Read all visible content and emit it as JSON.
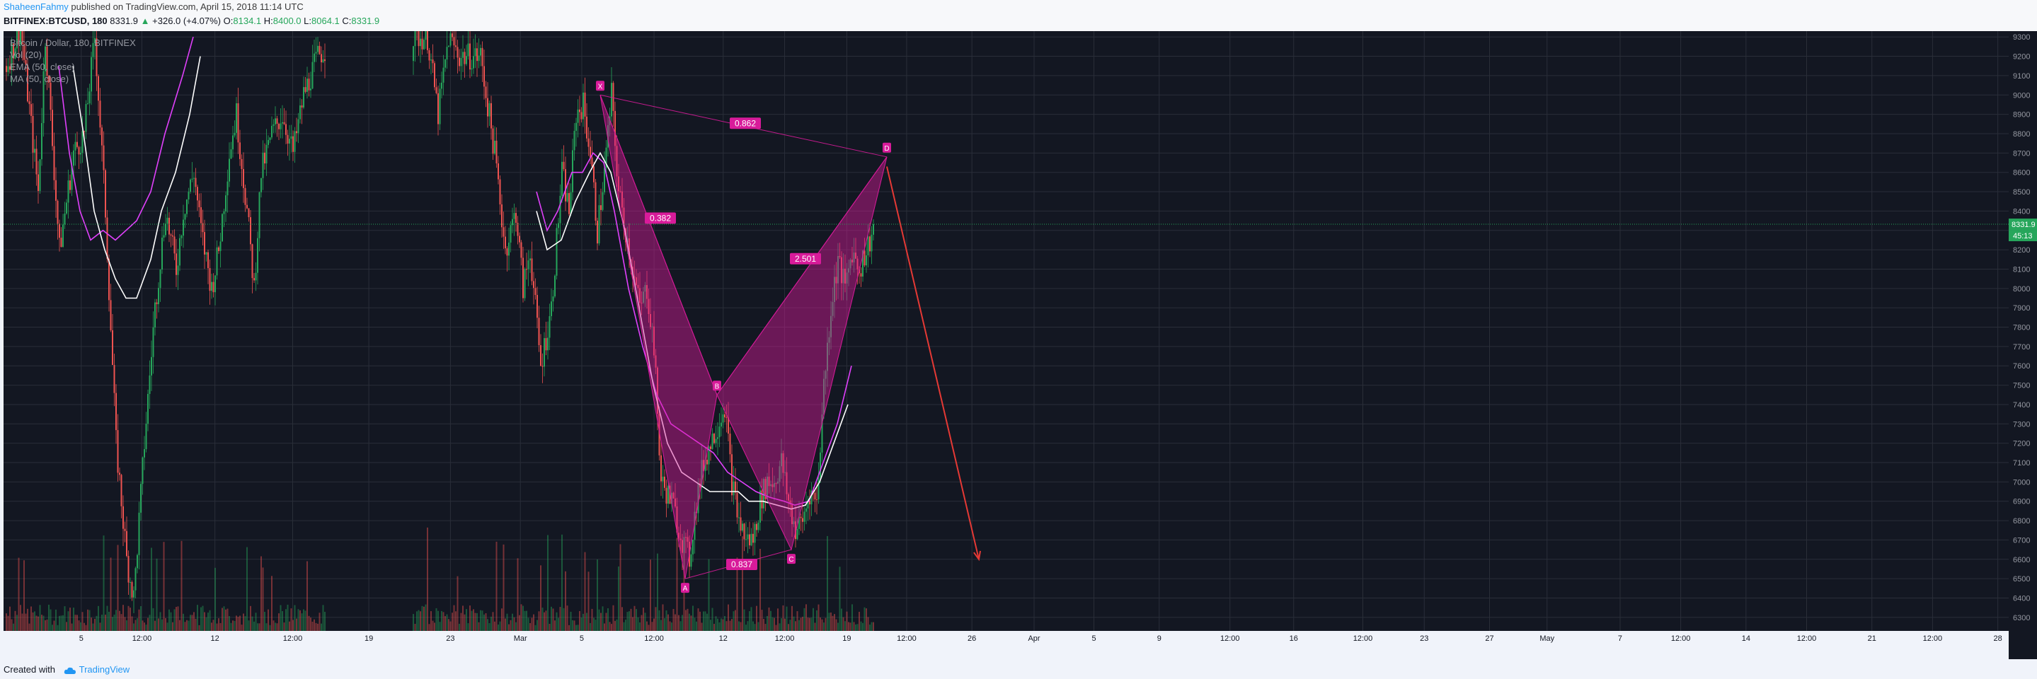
{
  "header": {
    "author": "ShaheenFahmy",
    "published_text": "published on TradingView.com, April 15, 2018 11:14 UTC",
    "symbol": "BITFINEX:BTCUSD, 180",
    "last": "8331.9",
    "change": "+326.0 (+4.07%)",
    "o_label": "O:",
    "o_value": "8134.1",
    "h_label": "H:",
    "h_value": "8400.0",
    "l_label": "L:",
    "l_value": "8064.1",
    "c_label": "C:",
    "c_value": "8331.9"
  },
  "footer": {
    "created_with": "Created with",
    "brand": "TradingView"
  },
  "colors": {
    "background": "#131722",
    "up": "#26a65b",
    "down": "#ef5350",
    "ema": "#e040fb",
    "ma": "#ffffff",
    "pattern": "#d81b9a",
    "arrow": "#e53935",
    "grid": "#2a2e39"
  },
  "chart_data": {
    "type": "candlestick",
    "legend": [
      "Bitcoin / Dollar, 180, BITFINEX",
      "Vol (20)",
      "EMA (50, close)",
      "MA (50, close)"
    ],
    "y_ticks": [
      6300,
      6400,
      6500,
      6600,
      6700,
      6800,
      6900,
      7000,
      7100,
      7200,
      7300,
      7400,
      7500,
      7600,
      7700,
      7800,
      7900,
      8000,
      8100,
      8200,
      8300,
      8400,
      8500,
      8600,
      8700,
      8800,
      8900,
      9000,
      9100,
      9200,
      9300
    ],
    "ylim": [
      6230,
      9330
    ],
    "x_ticks": [
      "5",
      "12:00",
      "12",
      "12:00",
      "19",
      "23",
      "Mar",
      "5",
      "12:00",
      "12",
      "12:00",
      "19",
      "12:00",
      "26",
      "Apr",
      "5",
      "9",
      "12:00",
      "16",
      "12:00",
      "23",
      "27",
      "May",
      "7",
      "12:00",
      "14",
      "12:00",
      "21",
      "12:00",
      "28"
    ],
    "last_price_label": "8331.9",
    "countdown_label": "45:13",
    "last_price": 8331.9,
    "price_waypoints": [
      [
        0,
        9150
      ],
      [
        8,
        9350
      ],
      [
        18,
        8500
      ],
      [
        22,
        9300
      ],
      [
        30,
        8200
      ],
      [
        38,
        8700
      ],
      [
        44,
        8800
      ],
      [
        50,
        9300
      ],
      [
        56,
        8400
      ],
      [
        62,
        7200
      ],
      [
        68,
        6600
      ],
      [
        72,
        6400
      ],
      [
        78,
        7200
      ],
      [
        84,
        7900
      ],
      [
        90,
        8400
      ],
      [
        96,
        8100
      ],
      [
        100,
        8400
      ],
      [
        106,
        8600
      ],
      [
        110,
        8300
      ],
      [
        116,
        8000
      ],
      [
        120,
        8200
      ],
      [
        126,
        8700
      ],
      [
        130,
        8900
      ],
      [
        136,
        8400
      ],
      [
        140,
        8000
      ],
      [
        144,
        8600
      ],
      [
        150,
        8800
      ],
      [
        156,
        8900
      ],
      [
        162,
        8700
      ],
      [
        168,
        9000
      ],
      [
        176,
        9200
      ],
      [
        186,
        9300
      ],
      [
        200,
        9300
      ],
      [
        230,
        9300
      ],
      [
        238,
        9300
      ],
      [
        244,
        8900
      ],
      [
        250,
        9300
      ],
      [
        256,
        9200
      ],
      [
        262,
        9200
      ],
      [
        268,
        9200
      ],
      [
        276,
        8700
      ],
      [
        282,
        8200
      ],
      [
        288,
        8400
      ],
      [
        292,
        8000
      ],
      [
        296,
        8200
      ],
      [
        302,
        7600
      ],
      [
        308,
        7900
      ],
      [
        314,
        8600
      ],
      [
        318,
        8400
      ],
      [
        322,
        8900
      ],
      [
        326,
        8950
      ],
      [
        330,
        8700
      ],
      [
        334,
        8300
      ],
      [
        338,
        8600
      ],
      [
        342,
        9000
      ],
      [
        346,
        8500
      ],
      [
        350,
        8300
      ],
      [
        354,
        8100
      ],
      [
        358,
        7900
      ],
      [
        362,
        8000
      ],
      [
        366,
        7700
      ],
      [
        370,
        7000
      ],
      [
        376,
        6900
      ],
      [
        382,
        6700
      ],
      [
        386,
        6600
      ],
      [
        390,
        6900
      ],
      [
        394,
        7100
      ],
      [
        398,
        7200
      ],
      [
        402,
        7300
      ],
      [
        406,
        7400
      ],
      [
        410,
        7000
      ],
      [
        414,
        6800
      ],
      [
        418,
        6700
      ],
      [
        422,
        6700
      ],
      [
        426,
        6900
      ],
      [
        430,
        7000
      ],
      [
        434,
        7000
      ],
      [
        438,
        7100
      ],
      [
        442,
        6900
      ],
      [
        446,
        6750
      ],
      [
        450,
        6800
      ],
      [
        454,
        6950
      ],
      [
        458,
        6900
      ],
      [
        462,
        7500
      ],
      [
        466,
        7900
      ],
      [
        470,
        8150
      ],
      [
        474,
        8000
      ],
      [
        478,
        8200
      ],
      [
        482,
        8100
      ],
      [
        486,
        8200
      ],
      [
        490,
        8300
      ]
    ],
    "price_range_segments": [
      [
        0,
        180,
        6300,
        9330
      ],
      [
        230,
        380,
        6500,
        9330
      ]
    ],
    "ema_path": [
      [
        30,
        9150
      ],
      [
        36,
        8700
      ],
      [
        42,
        8400
      ],
      [
        48,
        8250
      ],
      [
        55,
        8300
      ],
      [
        62,
        8250
      ],
      [
        68,
        8300
      ],
      [
        74,
        8350
      ],
      [
        82,
        8500
      ],
      [
        90,
        8800
      ],
      [
        100,
        9100
      ],
      [
        106,
        9300
      ],
      [
        300,
        8500
      ],
      [
        306,
        8300
      ],
      [
        312,
        8400
      ],
      [
        320,
        8600
      ],
      [
        326,
        8600
      ],
      [
        332,
        8700
      ],
      [
        338,
        8650
      ],
      [
        344,
        8400
      ],
      [
        352,
        8000
      ],
      [
        360,
        7700
      ],
      [
        368,
        7450
      ],
      [
        376,
        7300
      ],
      [
        384,
        7250
      ],
      [
        392,
        7200
      ],
      [
        400,
        7150
      ],
      [
        408,
        7050
      ],
      [
        416,
        7000
      ],
      [
        424,
        6950
      ],
      [
        432,
        6920
      ],
      [
        440,
        6900
      ],
      [
        446,
        6880
      ],
      [
        454,
        6900
      ],
      [
        462,
        7100
      ],
      [
        470,
        7300
      ],
      [
        478,
        7600
      ]
    ],
    "ma_path": [
      [
        38,
        9150
      ],
      [
        44,
        8800
      ],
      [
        50,
        8400
      ],
      [
        56,
        8200
      ],
      [
        62,
        8050
      ],
      [
        68,
        7950
      ],
      [
        74,
        7950
      ],
      [
        82,
        8150
      ],
      [
        88,
        8400
      ],
      [
        96,
        8600
      ],
      [
        104,
        8900
      ],
      [
        110,
        9200
      ],
      [
        300,
        8400
      ],
      [
        306,
        8200
      ],
      [
        314,
        8250
      ],
      [
        322,
        8450
      ],
      [
        330,
        8600
      ],
      [
        336,
        8700
      ],
      [
        342,
        8600
      ],
      [
        350,
        8300
      ],
      [
        358,
        7900
      ],
      [
        366,
        7500
      ],
      [
        374,
        7200
      ],
      [
        382,
        7050
      ],
      [
        390,
        7000
      ],
      [
        398,
        6950
      ],
      [
        406,
        6950
      ],
      [
        414,
        6950
      ],
      [
        420,
        6900
      ],
      [
        428,
        6900
      ],
      [
        436,
        6880
      ],
      [
        444,
        6860
      ],
      [
        452,
        6880
      ],
      [
        460,
        7000
      ],
      [
        468,
        7200
      ],
      [
        476,
        7400
      ]
    ],
    "harmonic_points": [
      {
        "label": "X",
        "bar": 336,
        "price": 9000
      },
      {
        "label": "A",
        "bar": 384,
        "price": 6500
      },
      {
        "label": "B",
        "bar": 402,
        "price": 7450
      },
      {
        "label": "C",
        "bar": 444,
        "price": 6650
      },
      {
        "label": "D",
        "bar": 498,
        "price": 8680
      }
    ],
    "ratio_labels": [
      {
        "text": "0.862",
        "bar": 418,
        "price": 8850
      },
      {
        "text": "0.382",
        "bar": 370,
        "price": 8360
      },
      {
        "text": "2.501",
        "bar": 452,
        "price": 8150
      },
      {
        "text": "0.837",
        "bar": 416,
        "price": 6570
      }
    ],
    "projection": {
      "from_bar": 498,
      "from_price": 8630,
      "to_bar": 550,
      "to_price": 6600
    },
    "total_bars": 760
  }
}
